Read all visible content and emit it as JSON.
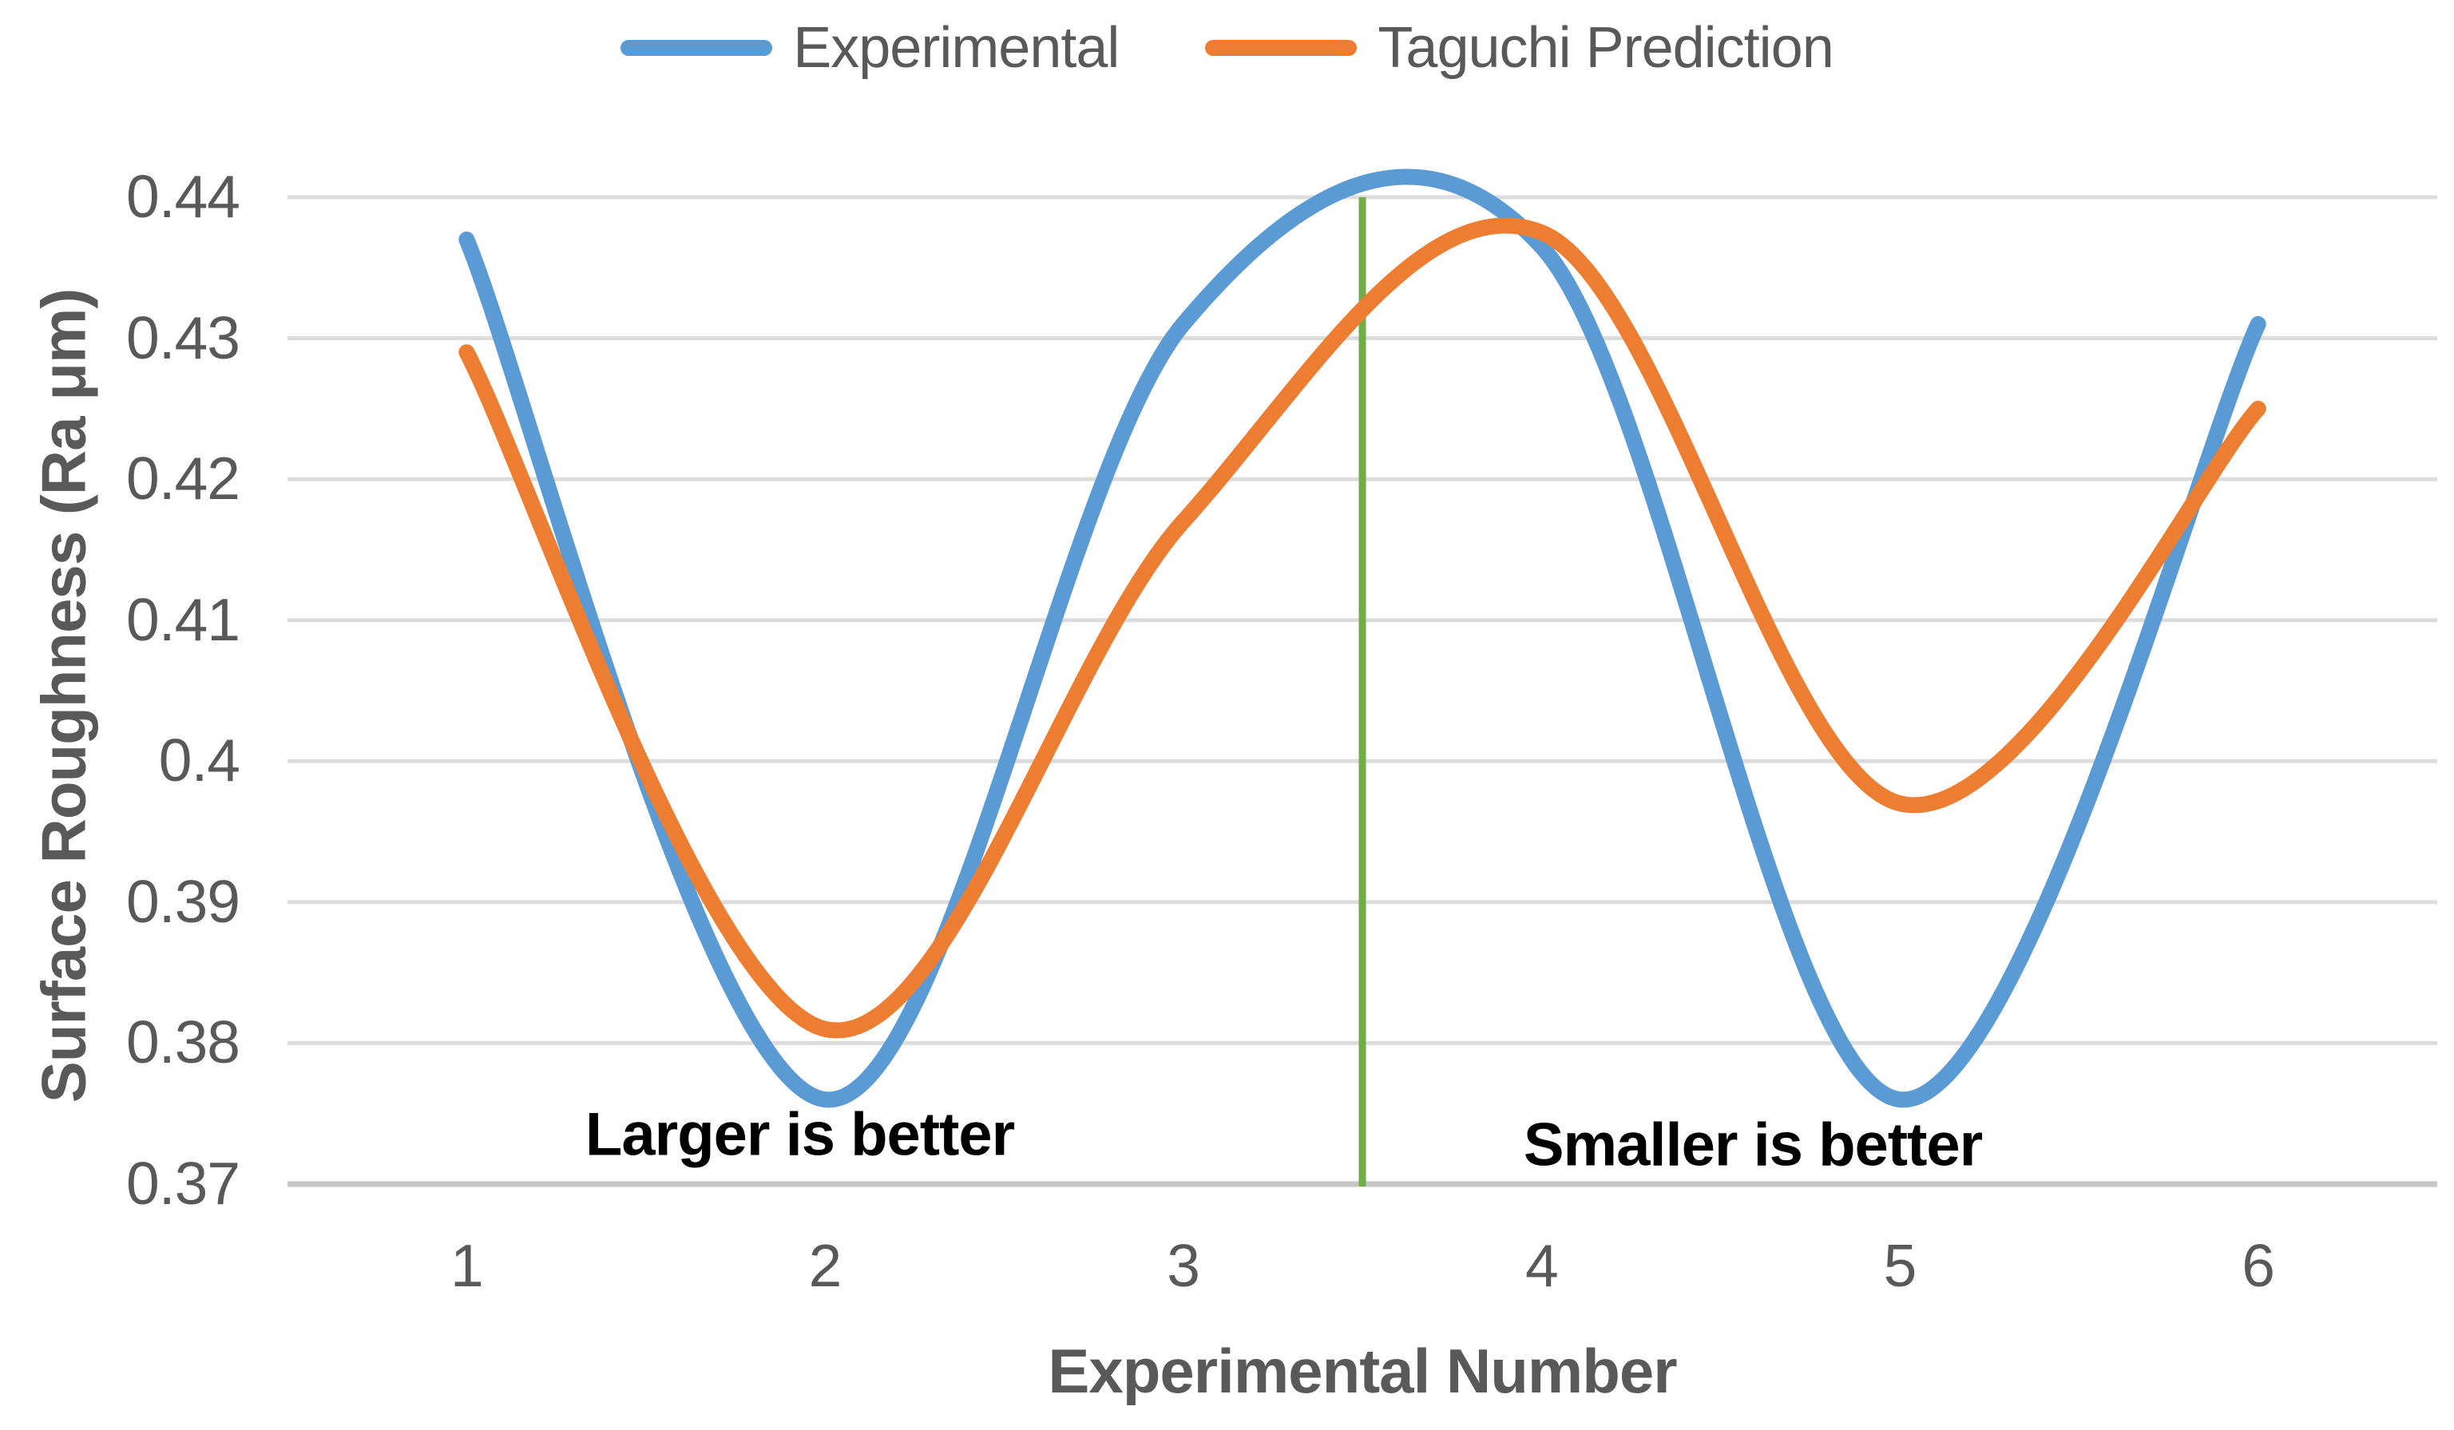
{
  "chart_data": {
    "type": "line",
    "title": "",
    "xlabel": "Experimental Number",
    "ylabel": "Surface Roughness (Ra μm)",
    "categories": [
      "1",
      "2",
      "3",
      "4",
      "5",
      "6"
    ],
    "series": [
      {
        "name": "Experimental",
        "color": "#5B9BD5",
        "values": [
          0.437,
          0.376,
          0.431,
          0.4365,
          0.376,
          0.431
        ]
      },
      {
        "name": "Taguchi Prediction",
        "color": "#ED7D31",
        "values": [
          0.429,
          0.381,
          0.417,
          0.4375,
          0.397,
          0.425
        ]
      }
    ],
    "ylim": [
      0.37,
      0.44
    ],
    "y_ticks": [
      {
        "label": "0.44",
        "value": 0.44
      },
      {
        "label": "0.43",
        "value": 0.43
      },
      {
        "label": "0.42",
        "value": 0.42
      },
      {
        "label": "0.41",
        "value": 0.41
      },
      {
        "label": "0.4",
        "value": 0.4
      },
      {
        "label": "0.39",
        "value": 0.39
      },
      {
        "label": "0.38",
        "value": 0.38
      },
      {
        "label": "0.37",
        "value": 0.37
      }
    ],
    "grid": true,
    "legend_position": "top center",
    "smooth_lines": true,
    "divider": {
      "position": 3.5,
      "color": "#70AD47"
    },
    "annotations": [
      {
        "text": "Larger is better",
        "anchor_category": 1.93,
        "anchor_value": 0.3735
      },
      {
        "text": "Smaller is better",
        "anchor_category": 4.59,
        "anchor_value": 0.3728
      }
    ],
    "style": {
      "gridline_color": "#DCDCDC",
      "axis_line_color": "#C6C6C6",
      "text_color": "#595959",
      "annotation_color": "#000000",
      "series_stroke_width": 20,
      "divider_stroke_width": 9
    }
  }
}
